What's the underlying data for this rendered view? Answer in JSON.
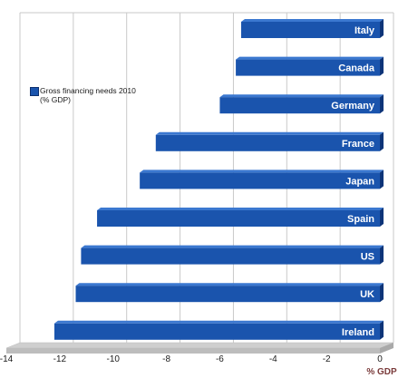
{
  "chart_data": {
    "type": "bar",
    "orientation": "horizontal",
    "categories": [
      "Italy",
      "Canada",
      "Germany",
      "France",
      "Japan",
      "Spain",
      "US",
      "UK",
      "Ireland"
    ],
    "series": [
      {
        "name": "Gross financing needs 2010 (% GDP)",
        "values": [
          -5.2,
          -5.4,
          -6.0,
          -8.4,
          -9.0,
          -10.6,
          -11.2,
          -11.4,
          -12.2
        ]
      }
    ],
    "xlim": [
      -14,
      0
    ],
    "xticks": [
      -14,
      -12,
      -10,
      -8,
      -6,
      -4,
      -2,
      0
    ],
    "xlabel": "% GDP",
    "legend": {
      "line1": "Gross financing needs 2010",
      "line2": "(% GDP)",
      "position": "upper-left"
    },
    "grid": true,
    "colors": {
      "bar": "#1a54ad",
      "bar_top": "#3b78d0",
      "bar_side": "#0d3478",
      "grid": "#c9c9c9",
      "floor": "#cfcfcf",
      "axis_title": "#7a3b3b"
    }
  }
}
